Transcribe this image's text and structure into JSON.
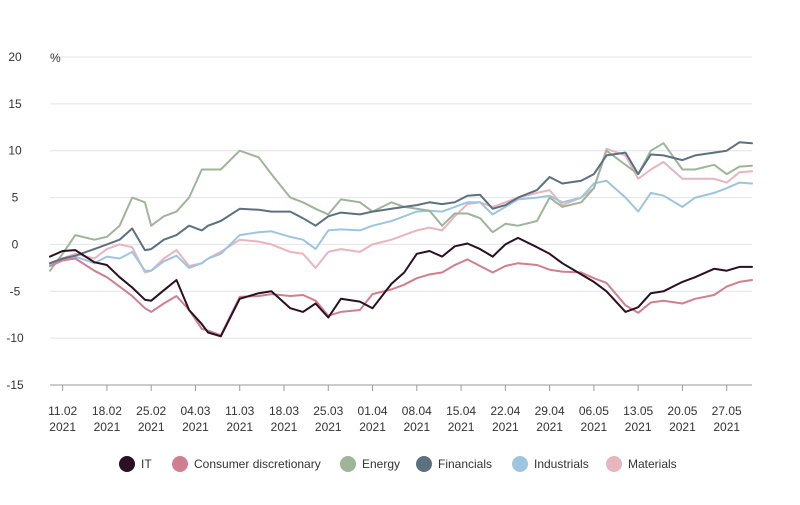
{
  "chart_data": {
    "type": "line",
    "title": "",
    "xlabel": "",
    "ylabel": "%",
    "ylim": [
      -15,
      20
    ],
    "y_ticks": [
      20,
      15,
      10,
      5,
      0,
      -5,
      -10,
      -15
    ],
    "grid": "horizontal",
    "legend_position": "bottom",
    "x_ticks": [
      {
        "line1": "11.02",
        "line2": "2021",
        "date": "2021-02-11"
      },
      {
        "line1": "18.02",
        "line2": "2021",
        "date": "2021-02-18"
      },
      {
        "line1": "25.02",
        "line2": "2021",
        "date": "2021-02-25"
      },
      {
        "line1": "04.03",
        "line2": "2021",
        "date": "2021-03-04"
      },
      {
        "line1": "11.03",
        "line2": "2021",
        "date": "2021-03-11"
      },
      {
        "line1": "18.03",
        "line2": "2021",
        "date": "2021-03-18"
      },
      {
        "line1": "25.03",
        "line2": "2021",
        "date": "2021-03-25"
      },
      {
        "line1": "01.04",
        "line2": "2021",
        "date": "2021-04-01"
      },
      {
        "line1": "08.04",
        "line2": "2021",
        "date": "2021-04-08"
      },
      {
        "line1": "15.04",
        "line2": "2021",
        "date": "2021-04-15"
      },
      {
        "line1": "22.04",
        "line2": "2021",
        "date": "2021-04-22"
      },
      {
        "line1": "29.04",
        "line2": "2021",
        "date": "2021-04-29"
      },
      {
        "line1": "06.05",
        "line2": "2021",
        "date": "2021-05-06"
      },
      {
        "line1": "13.05",
        "line2": "2021",
        "date": "2021-05-13"
      },
      {
        "line1": "20.05",
        "line2": "2021",
        "date": "2021-05-20"
      },
      {
        "line1": "27.05",
        "line2": "2021",
        "date": "2021-05-27"
      }
    ],
    "x_range": [
      "2021-02-09",
      "2021-05-31"
    ],
    "series": [
      {
        "name": "IT",
        "color": "#2b0f22",
        "x": [
          "2021-02-09",
          "2021-02-11",
          "2021-02-13",
          "2021-02-16",
          "2021-02-18",
          "2021-02-20",
          "2021-02-22",
          "2021-02-24",
          "2021-02-25",
          "2021-02-27",
          "2021-03-01",
          "2021-03-03",
          "2021-03-05",
          "2021-03-06",
          "2021-03-08",
          "2021-03-11",
          "2021-03-14",
          "2021-03-16",
          "2021-03-19",
          "2021-03-21",
          "2021-03-23",
          "2021-03-25",
          "2021-03-27",
          "2021-03-30",
          "2021-04-01",
          "2021-04-04",
          "2021-04-06",
          "2021-04-08",
          "2021-04-10",
          "2021-04-12",
          "2021-04-14",
          "2021-04-16",
          "2021-04-18",
          "2021-04-20",
          "2021-04-22",
          "2021-04-24",
          "2021-04-27",
          "2021-04-29",
          "2021-05-01",
          "2021-05-04",
          "2021-05-06",
          "2021-05-08",
          "2021-05-11",
          "2021-05-13",
          "2021-05-15",
          "2021-05-17",
          "2021-05-20",
          "2021-05-22",
          "2021-05-25",
          "2021-05-27",
          "2021-05-29",
          "2021-05-31"
        ],
        "y": [
          -1.3,
          -0.7,
          -0.6,
          -1.9,
          -2.2,
          -3.5,
          -4.6,
          -5.9,
          -6.0,
          -4.9,
          -3.8,
          -7.0,
          -8.5,
          -9.4,
          -9.8,
          -5.8,
          -5.2,
          -5.0,
          -6.8,
          -7.2,
          -6.3,
          -7.8,
          -5.8,
          -6.1,
          -6.8,
          -4.2,
          -3.0,
          -1.0,
          -0.7,
          -1.3,
          -0.2,
          0.1,
          -0.5,
          -1.3,
          0.0,
          0.7,
          -0.3,
          -1.0,
          -2.0,
          -3.2,
          -4.0,
          -5.0,
          -7.2,
          -6.7,
          -5.2,
          -5.0,
          -4.0,
          -3.5,
          -2.6,
          -2.8,
          -2.4,
          -2.4
        ]
      },
      {
        "name": "Consumer discretionary",
        "color": "#cf7f8f",
        "x": [
          "2021-02-09",
          "2021-02-11",
          "2021-02-13",
          "2021-02-16",
          "2021-02-18",
          "2021-02-20",
          "2021-02-22",
          "2021-02-24",
          "2021-02-25",
          "2021-02-27",
          "2021-03-01",
          "2021-03-03",
          "2021-03-05",
          "2021-03-06",
          "2021-03-08",
          "2021-03-11",
          "2021-03-14",
          "2021-03-16",
          "2021-03-19",
          "2021-03-21",
          "2021-03-23",
          "2021-03-25",
          "2021-03-27",
          "2021-03-30",
          "2021-04-01",
          "2021-04-04",
          "2021-04-06",
          "2021-04-08",
          "2021-04-10",
          "2021-04-12",
          "2021-04-14",
          "2021-04-16",
          "2021-04-18",
          "2021-04-20",
          "2021-04-22",
          "2021-04-24",
          "2021-04-27",
          "2021-04-29",
          "2021-05-01",
          "2021-05-04",
          "2021-05-06",
          "2021-05-08",
          "2021-05-11",
          "2021-05-13",
          "2021-05-15",
          "2021-05-17",
          "2021-05-20",
          "2021-05-22",
          "2021-05-25",
          "2021-05-27",
          "2021-05-29",
          "2021-05-31"
        ],
        "y": [
          -2.3,
          -1.7,
          -1.5,
          -2.8,
          -3.5,
          -4.5,
          -5.5,
          -6.8,
          -7.2,
          -6.3,
          -5.5,
          -7.0,
          -9.0,
          -9.2,
          -9.7,
          -5.6,
          -5.5,
          -5.3,
          -5.5,
          -5.4,
          -6.0,
          -7.6,
          -7.2,
          -7.0,
          -5.3,
          -4.8,
          -4.3,
          -3.6,
          -3.2,
          -3.0,
          -2.2,
          -1.6,
          -2.3,
          -3.0,
          -2.3,
          -2.0,
          -2.2,
          -2.7,
          -2.9,
          -3.0,
          -3.6,
          -4.1,
          -6.5,
          -7.3,
          -6.2,
          -6.0,
          -6.3,
          -5.8,
          -5.4,
          -4.5,
          -4.0,
          -3.8
        ]
      },
      {
        "name": "Energy",
        "color": "#9fb59a",
        "x": [
          "2021-02-09",
          "2021-02-11",
          "2021-02-13",
          "2021-02-16",
          "2021-02-18",
          "2021-02-20",
          "2021-02-22",
          "2021-02-24",
          "2021-02-25",
          "2021-02-27",
          "2021-03-01",
          "2021-03-03",
          "2021-03-05",
          "2021-03-06",
          "2021-03-08",
          "2021-03-11",
          "2021-03-14",
          "2021-03-16",
          "2021-03-19",
          "2021-03-21",
          "2021-03-23",
          "2021-03-25",
          "2021-03-27",
          "2021-03-30",
          "2021-04-01",
          "2021-04-04",
          "2021-04-06",
          "2021-04-08",
          "2021-04-10",
          "2021-04-12",
          "2021-04-14",
          "2021-04-16",
          "2021-04-18",
          "2021-04-20",
          "2021-04-22",
          "2021-04-24",
          "2021-04-27",
          "2021-04-29",
          "2021-05-01",
          "2021-05-04",
          "2021-05-06",
          "2021-05-08",
          "2021-05-11",
          "2021-05-13",
          "2021-05-15",
          "2021-05-17",
          "2021-05-20",
          "2021-05-22",
          "2021-05-25",
          "2021-05-27",
          "2021-05-29",
          "2021-05-31"
        ],
        "y": [
          -2.8,
          -1.0,
          1.0,
          0.5,
          0.8,
          2.0,
          5.0,
          4.5,
          2.0,
          3.0,
          3.5,
          5.0,
          8.0,
          8.0,
          8.0,
          10.0,
          9.3,
          7.5,
          5.0,
          4.5,
          3.8,
          3.2,
          4.8,
          4.5,
          3.5,
          4.5,
          4.0,
          3.8,
          3.6,
          2.0,
          3.3,
          3.3,
          2.8,
          1.3,
          2.2,
          2.0,
          2.5,
          5.0,
          4.0,
          4.5,
          6.0,
          10.0,
          8.5,
          7.5,
          10.0,
          10.8,
          8.0,
          8.0,
          8.5,
          7.5,
          8.3,
          8.4
        ]
      },
      {
        "name": "Financials",
        "color": "#5c7080",
        "x": [
          "2021-02-09",
          "2021-02-11",
          "2021-02-13",
          "2021-02-16",
          "2021-02-18",
          "2021-02-20",
          "2021-02-22",
          "2021-02-24",
          "2021-02-25",
          "2021-02-27",
          "2021-03-01",
          "2021-03-03",
          "2021-03-05",
          "2021-03-06",
          "2021-03-08",
          "2021-03-11",
          "2021-03-14",
          "2021-03-16",
          "2021-03-19",
          "2021-03-21",
          "2021-03-23",
          "2021-03-25",
          "2021-03-27",
          "2021-03-30",
          "2021-04-01",
          "2021-04-04",
          "2021-04-06",
          "2021-04-08",
          "2021-04-10",
          "2021-04-12",
          "2021-04-14",
          "2021-04-16",
          "2021-04-18",
          "2021-04-20",
          "2021-04-22",
          "2021-04-24",
          "2021-04-27",
          "2021-04-29",
          "2021-05-01",
          "2021-05-04",
          "2021-05-06",
          "2021-05-08",
          "2021-05-11",
          "2021-05-13",
          "2021-05-15",
          "2021-05-17",
          "2021-05-20",
          "2021-05-22",
          "2021-05-25",
          "2021-05-27",
          "2021-05-29",
          "2021-05-31"
        ],
        "y": [
          -2.0,
          -1.5,
          -1.2,
          -0.5,
          0.0,
          0.5,
          1.7,
          -0.6,
          -0.5,
          0.5,
          1.0,
          2.0,
          1.5,
          2.0,
          2.5,
          3.8,
          3.7,
          3.5,
          3.5,
          2.8,
          2.0,
          3.0,
          3.4,
          3.2,
          3.5,
          3.8,
          4.0,
          4.2,
          4.5,
          4.3,
          4.5,
          5.2,
          5.3,
          3.8,
          4.2,
          5.0,
          5.8,
          7.2,
          6.5,
          6.8,
          7.5,
          9.5,
          9.8,
          7.5,
          9.6,
          9.5,
          9.0,
          9.5,
          9.8,
          10.0,
          10.9,
          10.8
        ]
      },
      {
        "name": "Industrials",
        "color": "#9ec5df",
        "x": [
          "2021-02-09",
          "2021-02-11",
          "2021-02-13",
          "2021-02-16",
          "2021-02-18",
          "2021-02-20",
          "2021-02-22",
          "2021-02-24",
          "2021-02-25",
          "2021-02-27",
          "2021-03-01",
          "2021-03-03",
          "2021-03-05",
          "2021-03-06",
          "2021-03-08",
          "2021-03-11",
          "2021-03-14",
          "2021-03-16",
          "2021-03-19",
          "2021-03-21",
          "2021-03-23",
          "2021-03-25",
          "2021-03-27",
          "2021-03-30",
          "2021-04-01",
          "2021-04-04",
          "2021-04-06",
          "2021-04-08",
          "2021-04-10",
          "2021-04-12",
          "2021-04-14",
          "2021-04-16",
          "2021-04-18",
          "2021-04-20",
          "2021-04-22",
          "2021-04-24",
          "2021-04-27",
          "2021-04-29",
          "2021-05-01",
          "2021-05-04",
          "2021-05-06",
          "2021-05-08",
          "2021-05-11",
          "2021-05-13",
          "2021-05-15",
          "2021-05-17",
          "2021-05-20",
          "2021-05-22",
          "2021-05-25",
          "2021-05-27",
          "2021-05-29",
          "2021-05-31"
        ],
        "y": [
          -2.2,
          -1.5,
          -1.3,
          -2.0,
          -1.3,
          -1.5,
          -0.8,
          -2.8,
          -2.8,
          -1.8,
          -1.2,
          -2.5,
          -2.0,
          -1.5,
          -1.0,
          1.0,
          1.3,
          1.4,
          0.8,
          0.5,
          -0.5,
          1.5,
          1.6,
          1.5,
          2.0,
          2.5,
          3.0,
          3.5,
          3.6,
          3.5,
          4.0,
          4.5,
          4.5,
          3.2,
          4.0,
          4.8,
          5.0,
          5.2,
          4.5,
          5.0,
          6.5,
          6.8,
          5.0,
          3.5,
          5.5,
          5.2,
          4.0,
          5.0,
          5.5,
          6.0,
          6.6,
          6.5
        ]
      },
      {
        "name": "Materials",
        "color": "#e8b4bd",
        "x": [
          "2021-02-09",
          "2021-02-11",
          "2021-02-13",
          "2021-02-16",
          "2021-02-18",
          "2021-02-20",
          "2021-02-22",
          "2021-02-24",
          "2021-02-25",
          "2021-02-27",
          "2021-03-01",
          "2021-03-03",
          "2021-03-05",
          "2021-03-06",
          "2021-03-08",
          "2021-03-11",
          "2021-03-14",
          "2021-03-16",
          "2021-03-19",
          "2021-03-21",
          "2021-03-23",
          "2021-03-25",
          "2021-03-27",
          "2021-03-30",
          "2021-04-01",
          "2021-04-04",
          "2021-04-06",
          "2021-04-08",
          "2021-04-10",
          "2021-04-12",
          "2021-04-14",
          "2021-04-16",
          "2021-04-18",
          "2021-04-20",
          "2021-04-22",
          "2021-04-24",
          "2021-04-27",
          "2021-04-29",
          "2021-05-01",
          "2021-05-04",
          "2021-05-06",
          "2021-05-08",
          "2021-05-11",
          "2021-05-13",
          "2021-05-15",
          "2021-05-17",
          "2021-05-20",
          "2021-05-22",
          "2021-05-25",
          "2021-05-27",
          "2021-05-29",
          "2021-05-31"
        ],
        "y": [
          -2.0,
          -1.5,
          -1.0,
          -1.5,
          -0.5,
          0.0,
          -0.3,
          -3.0,
          -2.8,
          -1.5,
          -0.6,
          -2.3,
          -2.0,
          -1.5,
          -0.8,
          0.5,
          0.3,
          0.0,
          -0.8,
          -1.0,
          -2.5,
          -0.8,
          -0.5,
          -0.8,
          0.0,
          0.5,
          1.0,
          1.5,
          1.8,
          1.5,
          3.0,
          4.3,
          4.5,
          4.0,
          4.5,
          5.0,
          5.5,
          5.8,
          4.2,
          5.0,
          6.0,
          10.2,
          9.5,
          7.0,
          8.0,
          8.8,
          7.0,
          7.0,
          7.0,
          6.6,
          7.7,
          7.8
        ]
      }
    ]
  }
}
